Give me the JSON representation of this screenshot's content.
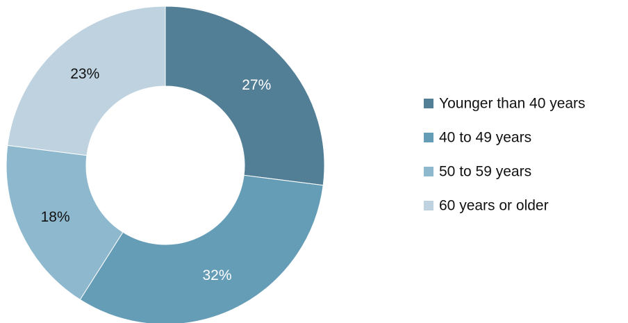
{
  "chart_data": {
    "type": "donut",
    "title": "",
    "categories": [
      "Younger than 40 years",
      "40 to 49 years",
      "50 to 59 years",
      "60 years or older"
    ],
    "values": [
      27,
      32,
      18,
      23
    ],
    "value_labels": [
      "27%",
      "32%",
      "18%",
      "23%"
    ],
    "colors": [
      "#537f96",
      "#659db7",
      "#8eb8cd",
      "#bed2df"
    ],
    "label_colors": [
      "#ffffff",
      "#ffffff",
      "#111111",
      "#111111"
    ],
    "unit": "%",
    "start_angle_deg": 0,
    "direction": "clockwise",
    "legend_position": "right"
  }
}
